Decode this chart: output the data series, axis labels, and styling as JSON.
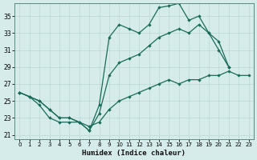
{
  "xlabel": "Humidex (Indice chaleur)",
  "background_color": "#d6ecea",
  "grid_color": "#b8d8d4",
  "line_color": "#1a6b5a",
  "xlim": [
    -0.5,
    23.5
  ],
  "ylim": [
    20.5,
    36.5
  ],
  "yticks": [
    21,
    23,
    25,
    27,
    29,
    31,
    33,
    35
  ],
  "xticks": [
    0,
    1,
    2,
    3,
    4,
    5,
    6,
    7,
    8,
    9,
    10,
    11,
    12,
    13,
    14,
    15,
    16,
    17,
    18,
    19,
    20,
    21,
    22,
    23
  ],
  "line_top": [
    26.0,
    25.5,
    25.0,
    24.0,
    23.0,
    23.0,
    22.5,
    21.5,
    24.5,
    32.5,
    34.0,
    33.5,
    33.0,
    34.0,
    36.0,
    36.2,
    36.5,
    34.5,
    35.0,
    33.0,
    31.0,
    29.0,
    null,
    null
  ],
  "line_mid": [
    26.0,
    25.5,
    25.0,
    24.0,
    23.0,
    23.0,
    22.5,
    21.5,
    23.5,
    28.0,
    29.5,
    30.0,
    30.5,
    31.5,
    32.5,
    33.0,
    33.5,
    33.0,
    34.0,
    33.0,
    32.0,
    29.0,
    null,
    null
  ],
  "line_bot": [
    26.0,
    25.5,
    24.5,
    23.0,
    22.5,
    22.5,
    22.5,
    22.0,
    22.5,
    24.0,
    25.0,
    25.5,
    26.0,
    26.5,
    27.0,
    27.5,
    27.0,
    27.5,
    27.5,
    28.0,
    28.0,
    28.5,
    28.0,
    28.0
  ]
}
